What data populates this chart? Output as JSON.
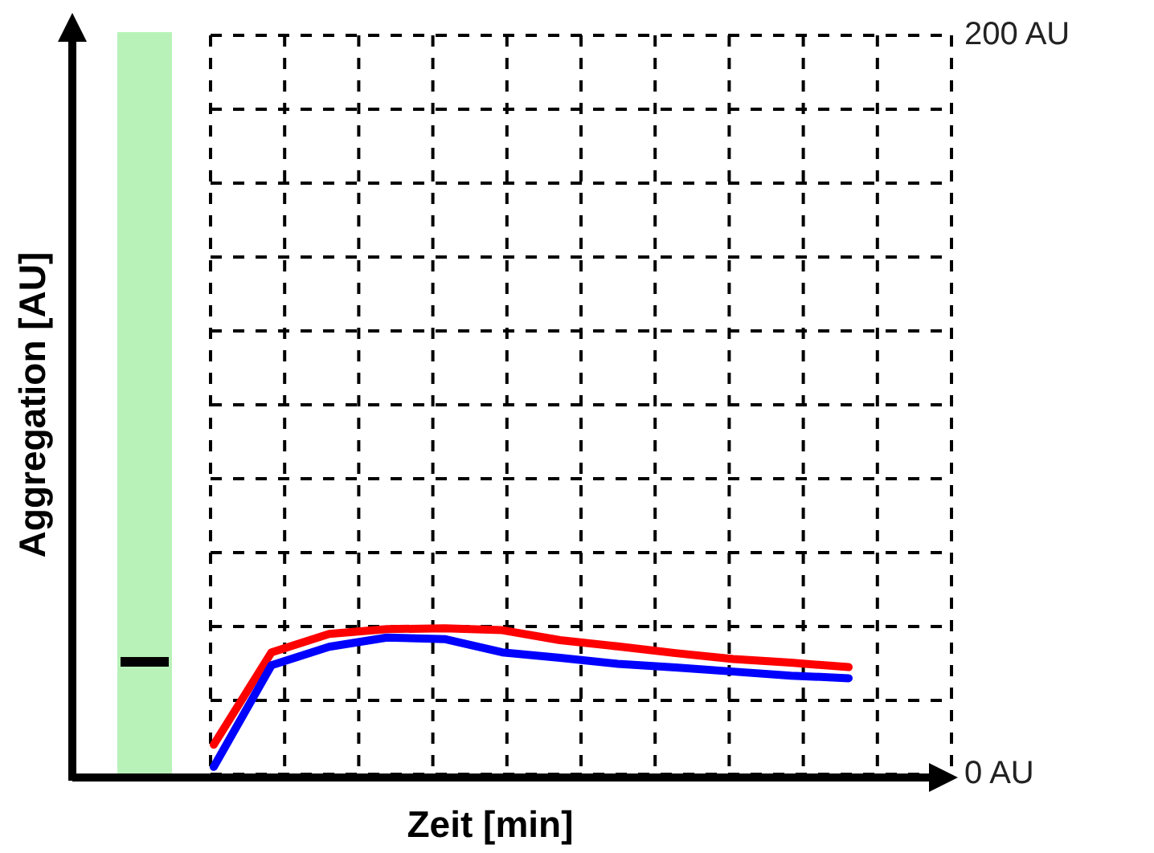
{
  "chart_data": {
    "type": "line",
    "xlabel": "Zeit [min]",
    "ylabel": "Aggregation [AU]",
    "categories": [
      null,
      null,
      null,
      null,
      null,
      null,
      null,
      null,
      null,
      null,
      null,
      null
    ],
    "ylim": [
      0,
      200
    ],
    "yticks": [
      {
        "value": 0,
        "label": "0 AU"
      },
      {
        "value": 20,
        "label": null
      },
      {
        "value": 40,
        "label": null
      },
      {
        "value": 60,
        "label": null
      },
      {
        "value": 80,
        "label": null
      },
      {
        "value": 100,
        "label": null
      },
      {
        "value": 120,
        "label": null
      },
      {
        "value": 140,
        "label": null
      },
      {
        "value": 160,
        "label": null
      },
      {
        "value": 180,
        "label": null
      },
      {
        "value": 200,
        "label": "200 AU"
      }
    ],
    "grid": true,
    "line_style": "solid",
    "marker": "none",
    "series": [
      {
        "color": "#ff0000",
        "values": [
          8,
          33,
          38,
          39.3,
          39.5,
          39,
          36.3,
          34.6,
          32.8,
          31.2,
          30.2,
          29
        ]
      },
      {
        "color": "#0000ff",
        "values": [
          2,
          29.5,
          34.5,
          37,
          36.6,
          33,
          31.5,
          29.9,
          28.9,
          27.8,
          26.7,
          26
        ]
      }
    ]
  }
}
